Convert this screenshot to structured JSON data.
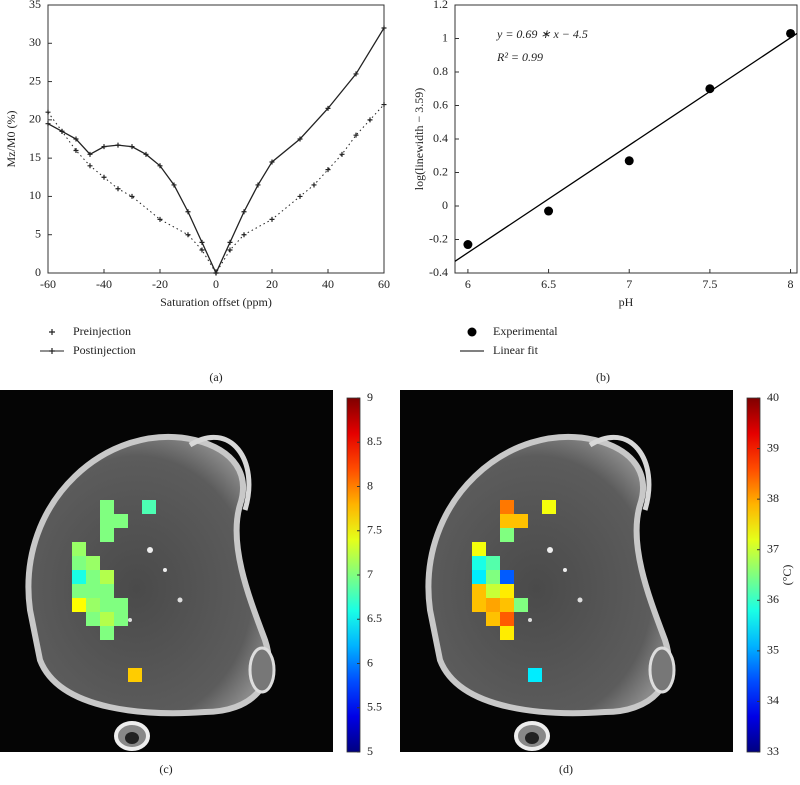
{
  "chart_data": [
    {
      "type": "line",
      "caption": "(a)",
      "x_label": "Saturation offset (ppm)",
      "y_label": "Mz/M0 (%)",
      "xlim": [
        -60,
        60
      ],
      "ylim": [
        0,
        35
      ],
      "xticks": [
        -60,
        -40,
        -20,
        0,
        20,
        40,
        60
      ],
      "yticks": [
        0,
        5,
        10,
        15,
        20,
        25,
        30,
        35
      ],
      "series": [
        {
          "name": "Preinjection",
          "color": "#222222",
          "line": "dotted",
          "marker": "+",
          "x": [
            -60,
            -55,
            -50,
            -45,
            -40,
            -35,
            -30,
            -20,
            -10,
            -5,
            0,
            5,
            10,
            20,
            30,
            35,
            40,
            45,
            50,
            55,
            60
          ],
          "values": [
            21,
            18.5,
            16,
            14,
            12.5,
            11,
            10,
            7,
            5,
            3,
            0,
            3,
            5,
            7,
            10,
            11.5,
            13.5,
            15.5,
            18,
            20,
            22
          ]
        },
        {
          "name": "Postinjection",
          "color": "#222222",
          "line": "solid",
          "marker": "+",
          "x": [
            -60,
            -55,
            -50,
            -45,
            -40,
            -35,
            -30,
            -25,
            -20,
            -15,
            -10,
            -5,
            0,
            5,
            10,
            15,
            20,
            30,
            40,
            50,
            60
          ],
          "values": [
            19.5,
            18.5,
            17.5,
            15.5,
            16.5,
            16.7,
            16.5,
            15.5,
            14,
            11.5,
            8,
            4,
            0,
            4,
            8,
            11.5,
            14.5,
            17.5,
            21.5,
            26,
            32
          ]
        }
      ]
    },
    {
      "type": "scatter",
      "caption": "(b)",
      "x_label": "pH",
      "y_label": "log(linewidth − 3.59)",
      "annotations": [
        "y = 0.69 ∗ x − 4.5",
        "R² = 0.99"
      ],
      "xlim": [
        5.92,
        8.04
      ],
      "ylim": [
        -0.4,
        1.2
      ],
      "xticks": [
        6,
        6.5,
        7,
        7.5,
        8
      ],
      "yticks": [
        -0.4,
        -0.2,
        0,
        0.2,
        0.4,
        0.6,
        0.8,
        1,
        1.2
      ],
      "series": [
        {
          "name": "Experimental",
          "color": "#000000",
          "marker": "dot",
          "x": [
            6,
            6.5,
            7,
            7.5,
            8
          ],
          "values": [
            -0.23,
            -0.03,
            0.27,
            0.7,
            1.03
          ]
        },
        {
          "name": "Linear fit",
          "color": "#000000",
          "line": "solid",
          "x": [
            5.92,
            8.04
          ],
          "values": [
            -0.33,
            1.03
          ]
        }
      ]
    },
    {
      "type": "heatmap",
      "caption": "(c)",
      "colormap": "jet",
      "zlim": [
        5,
        9
      ],
      "zticks": [
        5,
        5.5,
        6,
        6.5,
        7,
        7.5,
        8,
        8.5,
        9
      ],
      "values": [
        [
          null,
          null,
          7.0,
          null,
          null,
          6.8
        ],
        [
          null,
          null,
          7.0,
          7.0,
          null,
          null
        ],
        [
          null,
          null,
          7.0,
          null,
          null,
          null
        ],
        [
          7.1,
          null,
          null,
          null,
          null,
          null
        ],
        [
          7.0,
          7.1,
          null,
          null,
          null,
          null
        ],
        [
          6.6,
          7.0,
          7.2,
          null,
          null,
          null
        ],
        [
          7.0,
          7.0,
          7.0,
          null,
          null,
          null
        ],
        [
          7.5,
          7.1,
          7.0,
          7.0,
          null,
          null
        ],
        [
          null,
          7.0,
          7.2,
          7.0,
          null,
          null
        ],
        [
          null,
          null,
          7.0,
          null,
          null,
          null
        ],
        [
          null,
          null,
          null,
          null,
          null,
          null
        ],
        [
          null,
          null,
          null,
          null,
          null,
          null
        ],
        [
          null,
          null,
          null,
          null,
          7.7,
          null
        ]
      ]
    },
    {
      "type": "heatmap",
      "caption": "(d)",
      "colormap": "jet",
      "colorbar_label": "(°C)",
      "zlim": [
        33,
        40
      ],
      "zticks": [
        33,
        34,
        35,
        36,
        37,
        38,
        39,
        40
      ],
      "values": [
        [
          null,
          null,
          38.3,
          null,
          null,
          37.3
        ],
        [
          null,
          null,
          37.8,
          37.8,
          null,
          null
        ],
        [
          null,
          null,
          36.5,
          null,
          null,
          null
        ],
        [
          37.3,
          null,
          null,
          null,
          null,
          null
        ],
        [
          35.8,
          36.2,
          null,
          null,
          null,
          null
        ],
        [
          35.5,
          36.5,
          34.5,
          null,
          null,
          null
        ],
        [
          37.8,
          37.0,
          37.5,
          null,
          null,
          null
        ],
        [
          37.8,
          38.0,
          37.8,
          36.5,
          null,
          null
        ],
        [
          null,
          37.8,
          38.5,
          null,
          null,
          null
        ],
        [
          null,
          null,
          37.5,
          null,
          null,
          null
        ],
        [
          null,
          null,
          null,
          null,
          null,
          null
        ],
        [
          null,
          null,
          null,
          null,
          null,
          null
        ],
        [
          null,
          null,
          null,
          null,
          35.5,
          null
        ]
      ]
    }
  ]
}
